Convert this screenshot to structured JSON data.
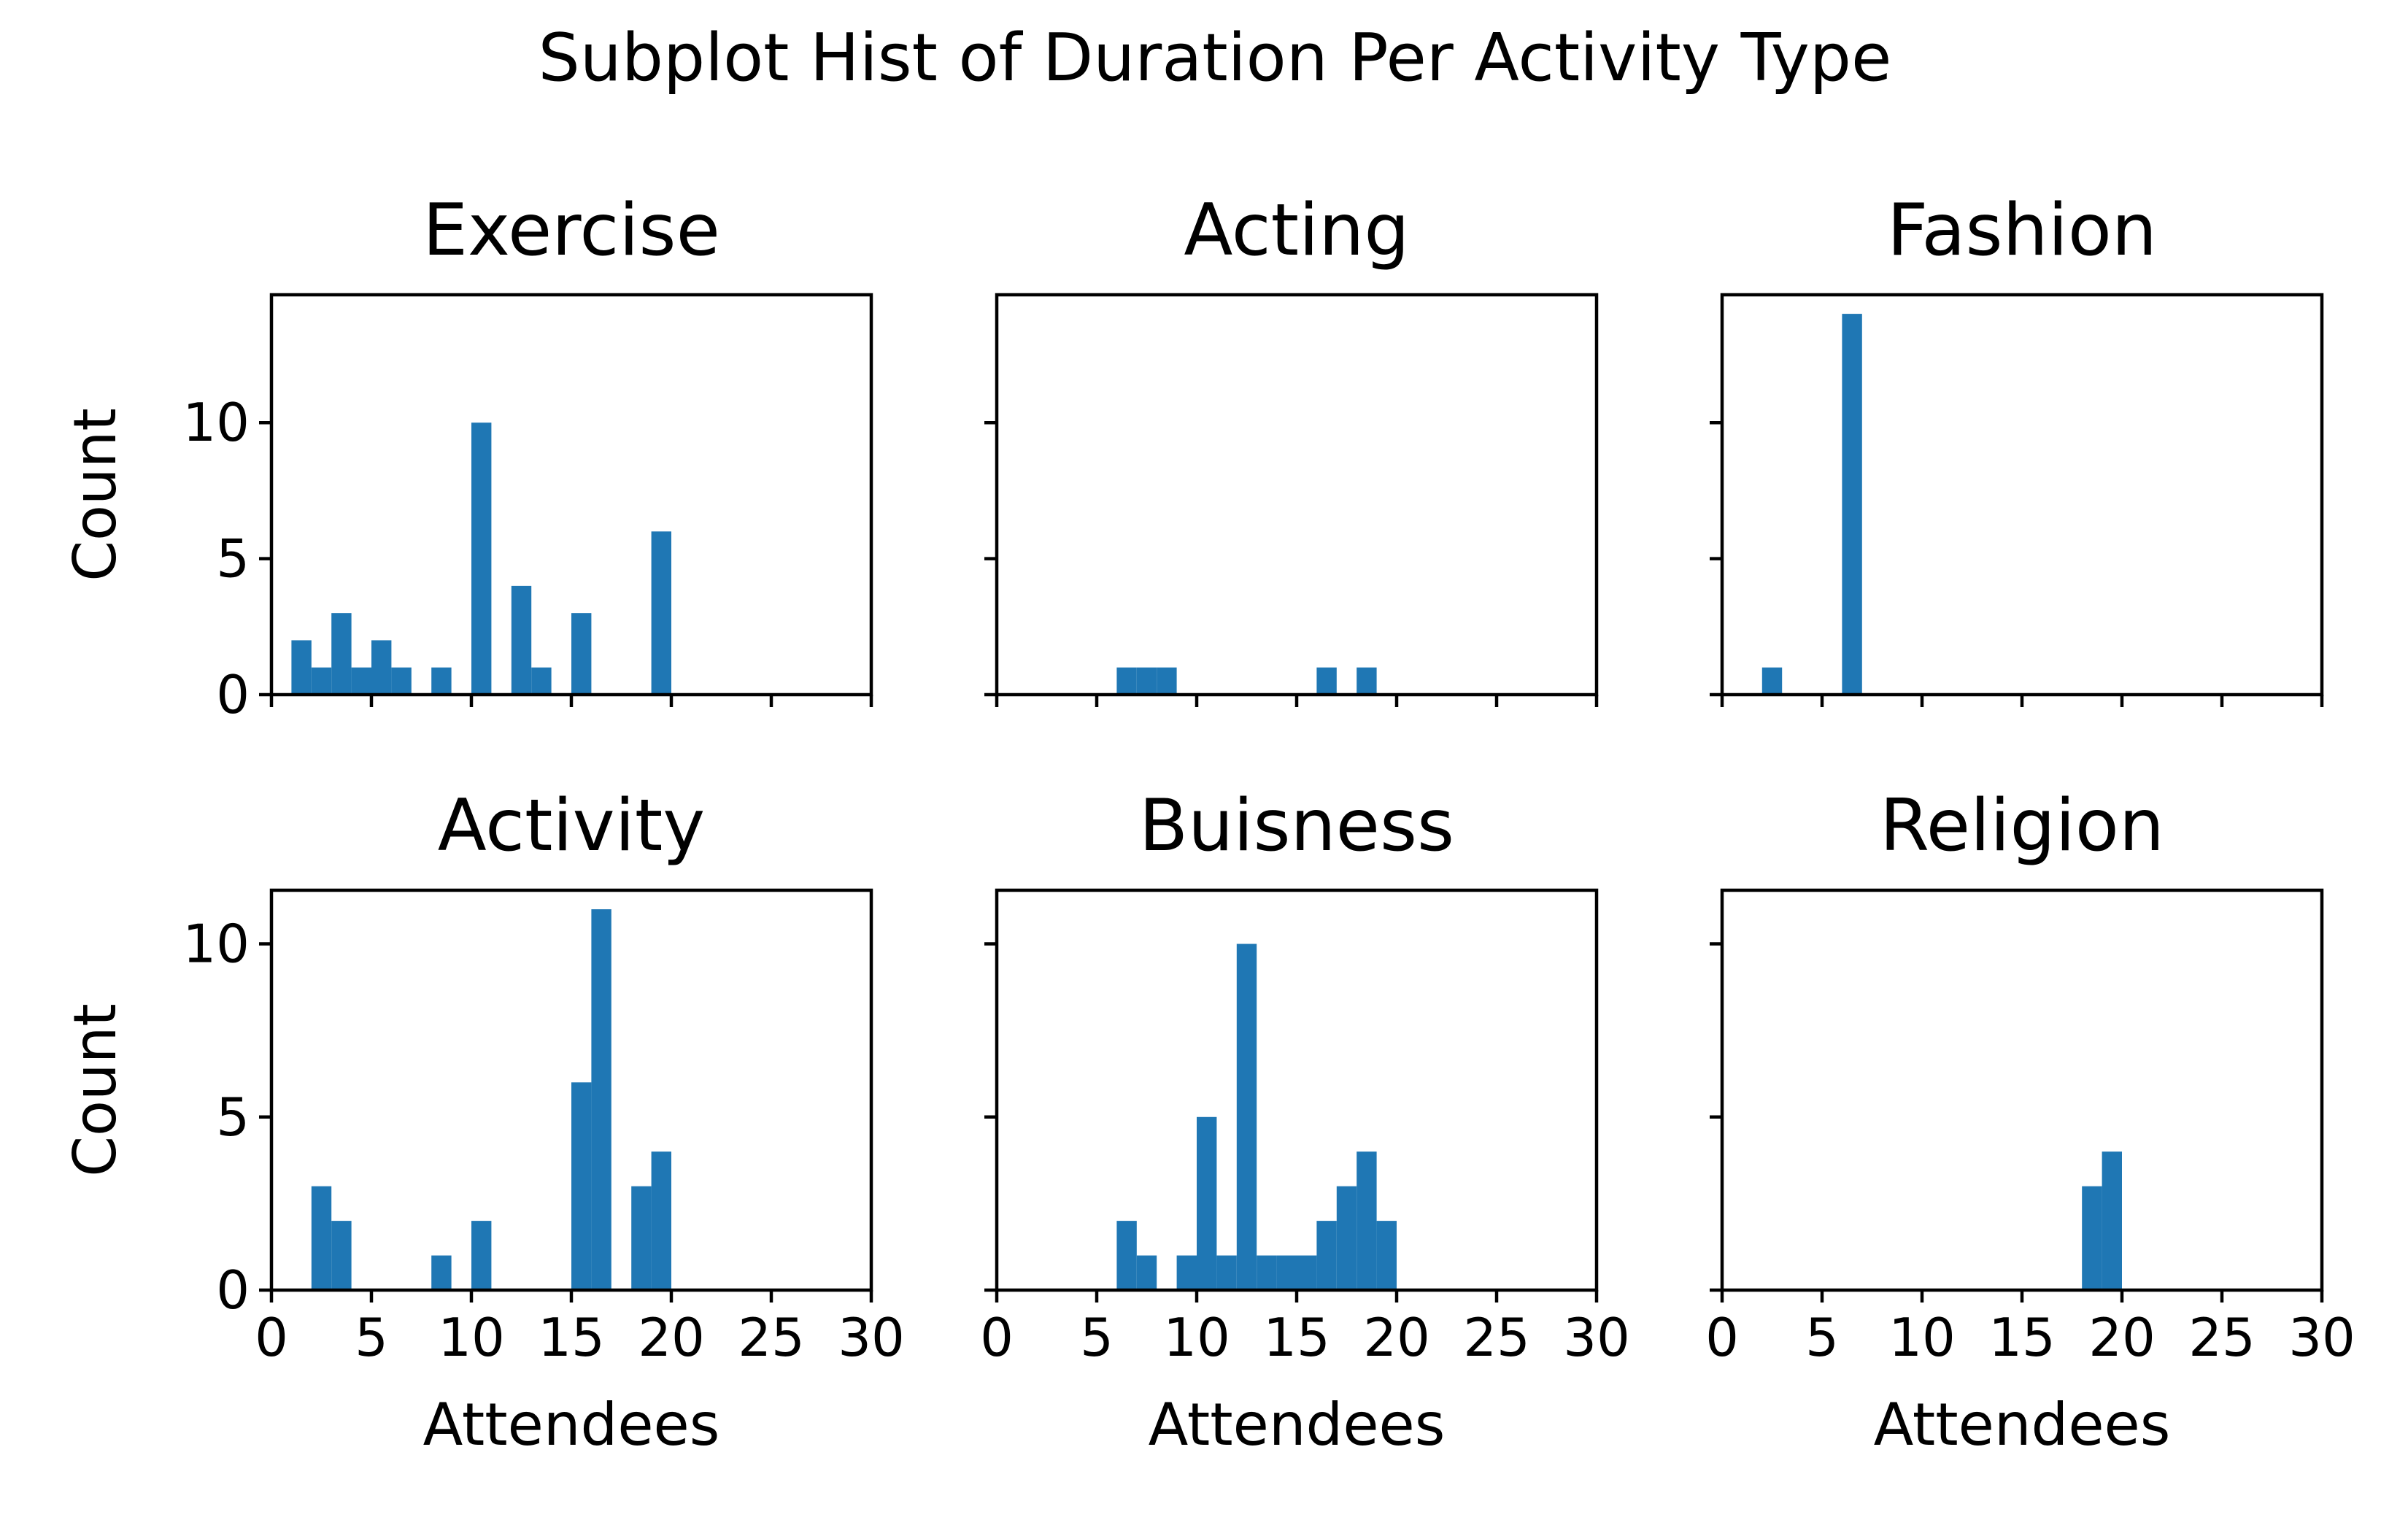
{
  "chart_data": {
    "type": "bar",
    "title": "Subplot Hist of Duration Per Activity Type",
    "grid": false,
    "bin_width": 1,
    "xlim": [
      0,
      30
    ],
    "x_ticks": [
      0,
      5,
      10,
      15,
      20,
      25,
      30
    ],
    "xlabel": "Attendees",
    "ylabel": "Count",
    "bar_color": "#1f77b4",
    "rows": [
      {
        "ylim": [
          0,
          14.7
        ],
        "y_ticks": [
          0,
          5,
          10
        ]
      },
      {
        "ylim": [
          0,
          11.55
        ],
        "y_ticks": [
          0,
          5,
          10
        ]
      }
    ],
    "panels": [
      {
        "title": "Exercise",
        "row": 0,
        "col": 0,
        "bins": [
          {
            "x": 1,
            "count": 2
          },
          {
            "x": 2,
            "count": 1
          },
          {
            "x": 3,
            "count": 3
          },
          {
            "x": 4,
            "count": 1
          },
          {
            "x": 5,
            "count": 2
          },
          {
            "x": 6,
            "count": 1
          },
          {
            "x": 8,
            "count": 1
          },
          {
            "x": 10,
            "count": 10
          },
          {
            "x": 12,
            "count": 4
          },
          {
            "x": 13,
            "count": 1
          },
          {
            "x": 15,
            "count": 3
          },
          {
            "x": 19,
            "count": 6
          }
        ]
      },
      {
        "title": "Acting",
        "row": 0,
        "col": 1,
        "bins": [
          {
            "x": 6,
            "count": 1
          },
          {
            "x": 7,
            "count": 1
          },
          {
            "x": 8,
            "count": 1
          },
          {
            "x": 16,
            "count": 1
          },
          {
            "x": 18,
            "count": 1
          }
        ]
      },
      {
        "title": "Fashion",
        "row": 0,
        "col": 2,
        "bins": [
          {
            "x": 2,
            "count": 1
          },
          {
            "x": 6,
            "count": 14
          }
        ]
      },
      {
        "title": "Activity",
        "row": 1,
        "col": 0,
        "bins": [
          {
            "x": 2,
            "count": 3
          },
          {
            "x": 3,
            "count": 2
          },
          {
            "x": 8,
            "count": 1
          },
          {
            "x": 10,
            "count": 2
          },
          {
            "x": 15,
            "count": 6
          },
          {
            "x": 16,
            "count": 11
          },
          {
            "x": 18,
            "count": 3
          },
          {
            "x": 19,
            "count": 4
          }
        ]
      },
      {
        "title": "Buisness",
        "row": 1,
        "col": 1,
        "bins": [
          {
            "x": 6,
            "count": 2
          },
          {
            "x": 7,
            "count": 1
          },
          {
            "x": 9,
            "count": 1
          },
          {
            "x": 10,
            "count": 5
          },
          {
            "x": 11,
            "count": 1
          },
          {
            "x": 12,
            "count": 10
          },
          {
            "x": 13,
            "count": 1
          },
          {
            "x": 14,
            "count": 1
          },
          {
            "x": 15,
            "count": 1
          },
          {
            "x": 16,
            "count": 2
          },
          {
            "x": 17,
            "count": 3
          },
          {
            "x": 18,
            "count": 4
          },
          {
            "x": 19,
            "count": 2
          }
        ]
      },
      {
        "title": "Religion",
        "row": 1,
        "col": 2,
        "bins": [
          {
            "x": 18,
            "count": 3
          },
          {
            "x": 19,
            "count": 4
          }
        ]
      }
    ]
  }
}
